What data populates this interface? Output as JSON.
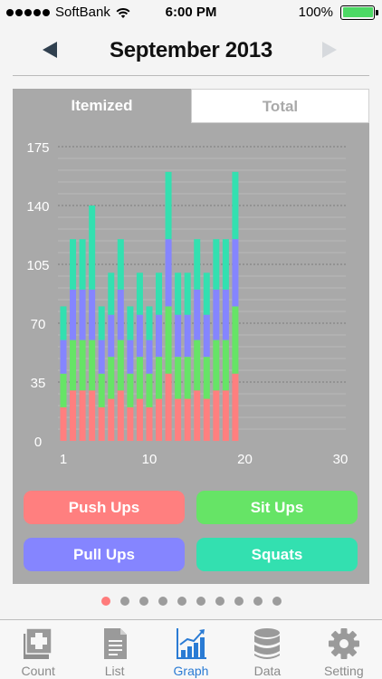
{
  "status": {
    "carrier": "SoftBank",
    "time": "6:00 PM",
    "battery": "100%"
  },
  "header": {
    "title": "September 2013"
  },
  "segments": {
    "itemized": "Itemized",
    "total": "Total"
  },
  "buttons": {
    "push_ups": "Push Ups",
    "sit_ups": "Sit Ups",
    "pull_ups": "Pull Ups",
    "squats": "Squats"
  },
  "colors": {
    "push_ups": "#ff7f7f",
    "sit_ups": "#66e466",
    "pull_ups": "#8585ff",
    "squats": "#33e0b0"
  },
  "pager": {
    "count": 10,
    "active": 0
  },
  "tabs": [
    {
      "label": "Count",
      "icon": "plus-box-icon"
    },
    {
      "label": "List",
      "icon": "document-icon"
    },
    {
      "label": "Graph",
      "icon": "bar-chart-icon"
    },
    {
      "label": "Data",
      "icon": "database-icon"
    },
    {
      "label": "Setting",
      "icon": "gear-icon"
    }
  ],
  "active_tab": 2,
  "chart_data": {
    "type": "bar",
    "stacked": true,
    "x": [
      1,
      2,
      3,
      4,
      5,
      6,
      7,
      8,
      9,
      10,
      11,
      12,
      13,
      14,
      15,
      16,
      17,
      18,
      19
    ],
    "xticks": [
      "1",
      "10",
      "20",
      "30"
    ],
    "xlim": [
      1,
      30
    ],
    "yticks": [
      "0",
      "35",
      "70",
      "105",
      "140",
      "175"
    ],
    "ylim": [
      0,
      175
    ],
    "grid": true,
    "series": [
      {
        "name": "Push Ups",
        "values": [
          20,
          30,
          30,
          30,
          20,
          25,
          30,
          20,
          25,
          20,
          25,
          40,
          25,
          25,
          30,
          25,
          30,
          30,
          40
        ]
      },
      {
        "name": "Sit Ups",
        "values": [
          20,
          30,
          30,
          30,
          20,
          25,
          30,
          20,
          25,
          20,
          25,
          40,
          25,
          25,
          30,
          25,
          30,
          30,
          40
        ]
      },
      {
        "name": "Pull Ups",
        "values": [
          20,
          30,
          30,
          30,
          20,
          25,
          30,
          20,
          25,
          20,
          25,
          40,
          25,
          25,
          30,
          25,
          30,
          30,
          40
        ]
      },
      {
        "name": "Squats",
        "values": [
          20,
          30,
          30,
          50,
          20,
          25,
          30,
          20,
          25,
          20,
          25,
          40,
          25,
          25,
          30,
          25,
          30,
          30,
          40
        ]
      }
    ]
  }
}
